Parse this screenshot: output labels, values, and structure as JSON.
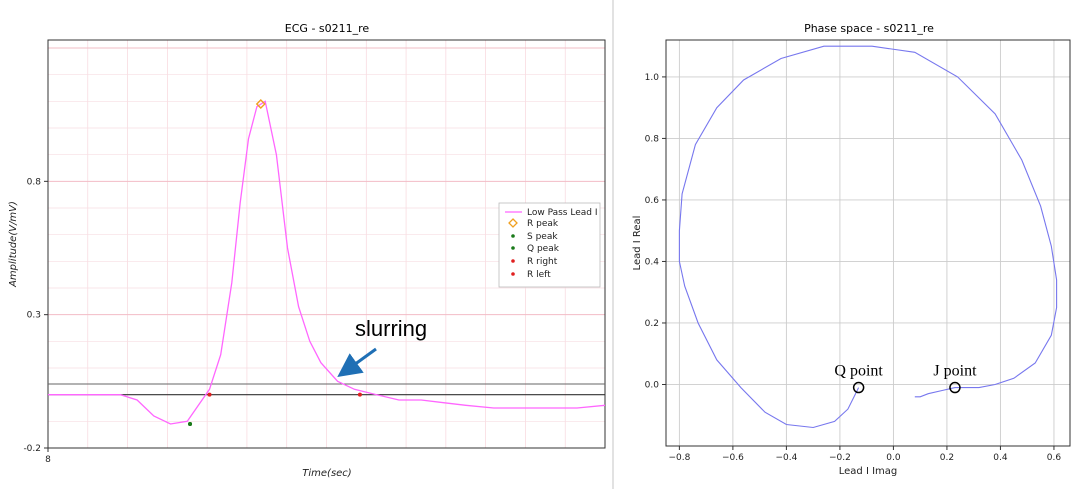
{
  "chart_data": [
    {
      "type": "line",
      "title": "ECG - s0211_re",
      "xlabel": "Time(sec)",
      "ylabel": "Amplitude(V/mV)",
      "x_ticks": [
        "8"
      ],
      "y_ticks": [
        -0.2,
        0.3,
        0.8
      ],
      "ylim": [
        -0.2,
        1.33
      ],
      "grid": true,
      "legend": {
        "position": "center-right",
        "entries": [
          "Low Pass Lead I",
          "R peak",
          "S peak",
          "Q peak",
          "R right",
          "R left"
        ]
      },
      "series": [
        {
          "name": "Low Pass Lead I",
          "color": "#ff66ff",
          "x": [
            0,
            0.05,
            0.1,
            0.13,
            0.16,
            0.19,
            0.22,
            0.25,
            0.27,
            0.29,
            0.31,
            0.33,
            0.345,
            0.36,
            0.375,
            0.39,
            0.41,
            0.43,
            0.45,
            0.47,
            0.49,
            0.52,
            0.55,
            0.59,
            0.63,
            0.67,
            0.71,
            0.75,
            0.8,
            0.85,
            0.9,
            0.95,
            1.0
          ],
          "values": [
            0.0,
            0.0,
            0.0,
            0.0,
            -0.02,
            -0.08,
            -0.11,
            -0.1,
            -0.04,
            0.02,
            0.15,
            0.42,
            0.72,
            0.96,
            1.08,
            1.1,
            0.9,
            0.55,
            0.33,
            0.2,
            0.12,
            0.05,
            0.02,
            0.0,
            -0.02,
            -0.02,
            -0.03,
            -0.04,
            -0.05,
            -0.05,
            -0.05,
            -0.05,
            -0.04
          ]
        }
      ],
      "points": {
        "R peak": {
          "x": 0.382,
          "y": 1.09,
          "color": "#f0a020",
          "marker": "diamond"
        },
        "S peak": {
          "x": 0.255,
          "y": -0.11,
          "color": "#1a7a1a",
          "marker": "dot"
        },
        "Q peak": {
          "x": 0.255,
          "y": -0.11,
          "color": "#1a7a1a",
          "marker": "dot"
        },
        "R right": {
          "x": 0.56,
          "y": 0.0,
          "color": "#e02020",
          "marker": "dot"
        },
        "R left": {
          "x": 0.29,
          "y": 0.0,
          "color": "#e02020",
          "marker": "dot"
        }
      },
      "hlines": [
        0.0,
        0.04
      ],
      "annotation": {
        "text": "slurring"
      }
    },
    {
      "type": "line",
      "title": "Phase space - s0211_re",
      "xlabel": "Lead I Imag",
      "ylabel": "Lead I Real",
      "xlim": [
        -0.85,
        0.66
      ],
      "ylim": [
        -0.2,
        1.12
      ],
      "x_ticks": [
        -0.8,
        -0.6,
        -0.4,
        -0.2,
        0.0,
        0.2,
        0.4,
        0.6
      ],
      "y_ticks": [
        0.0,
        0.2,
        0.4,
        0.6,
        0.8,
        1.0
      ],
      "grid": true,
      "series": [
        {
          "color": "#7777ee",
          "x": [
            -0.13,
            -0.17,
            -0.22,
            -0.3,
            -0.4,
            -0.48,
            -0.57,
            -0.66,
            -0.73,
            -0.78,
            -0.8,
            -0.8,
            -0.79,
            -0.74,
            -0.66,
            -0.56,
            -0.42,
            -0.26,
            -0.08,
            0.08,
            0.24,
            0.38,
            0.48,
            0.55,
            0.59,
            0.61,
            0.61,
            0.59,
            0.53,
            0.45,
            0.38,
            0.32,
            0.27,
            0.23,
            0.18,
            0.13,
            0.1,
            0.08
          ],
          "values": [
            -0.01,
            -0.08,
            -0.12,
            -0.14,
            -0.13,
            -0.09,
            -0.01,
            0.08,
            0.2,
            0.32,
            0.4,
            0.5,
            0.62,
            0.78,
            0.9,
            0.99,
            1.06,
            1.1,
            1.1,
            1.08,
            1.0,
            0.88,
            0.73,
            0.58,
            0.45,
            0.34,
            0.25,
            0.16,
            0.07,
            0.02,
            0.0,
            -0.01,
            -0.01,
            -0.01,
            -0.02,
            -0.03,
            -0.04,
            -0.04
          ]
        }
      ],
      "markers": [
        {
          "label": "Q point",
          "x": -0.13,
          "y": -0.01
        },
        {
          "label": "J point",
          "x": 0.23,
          "y": -0.01
        }
      ]
    }
  ]
}
